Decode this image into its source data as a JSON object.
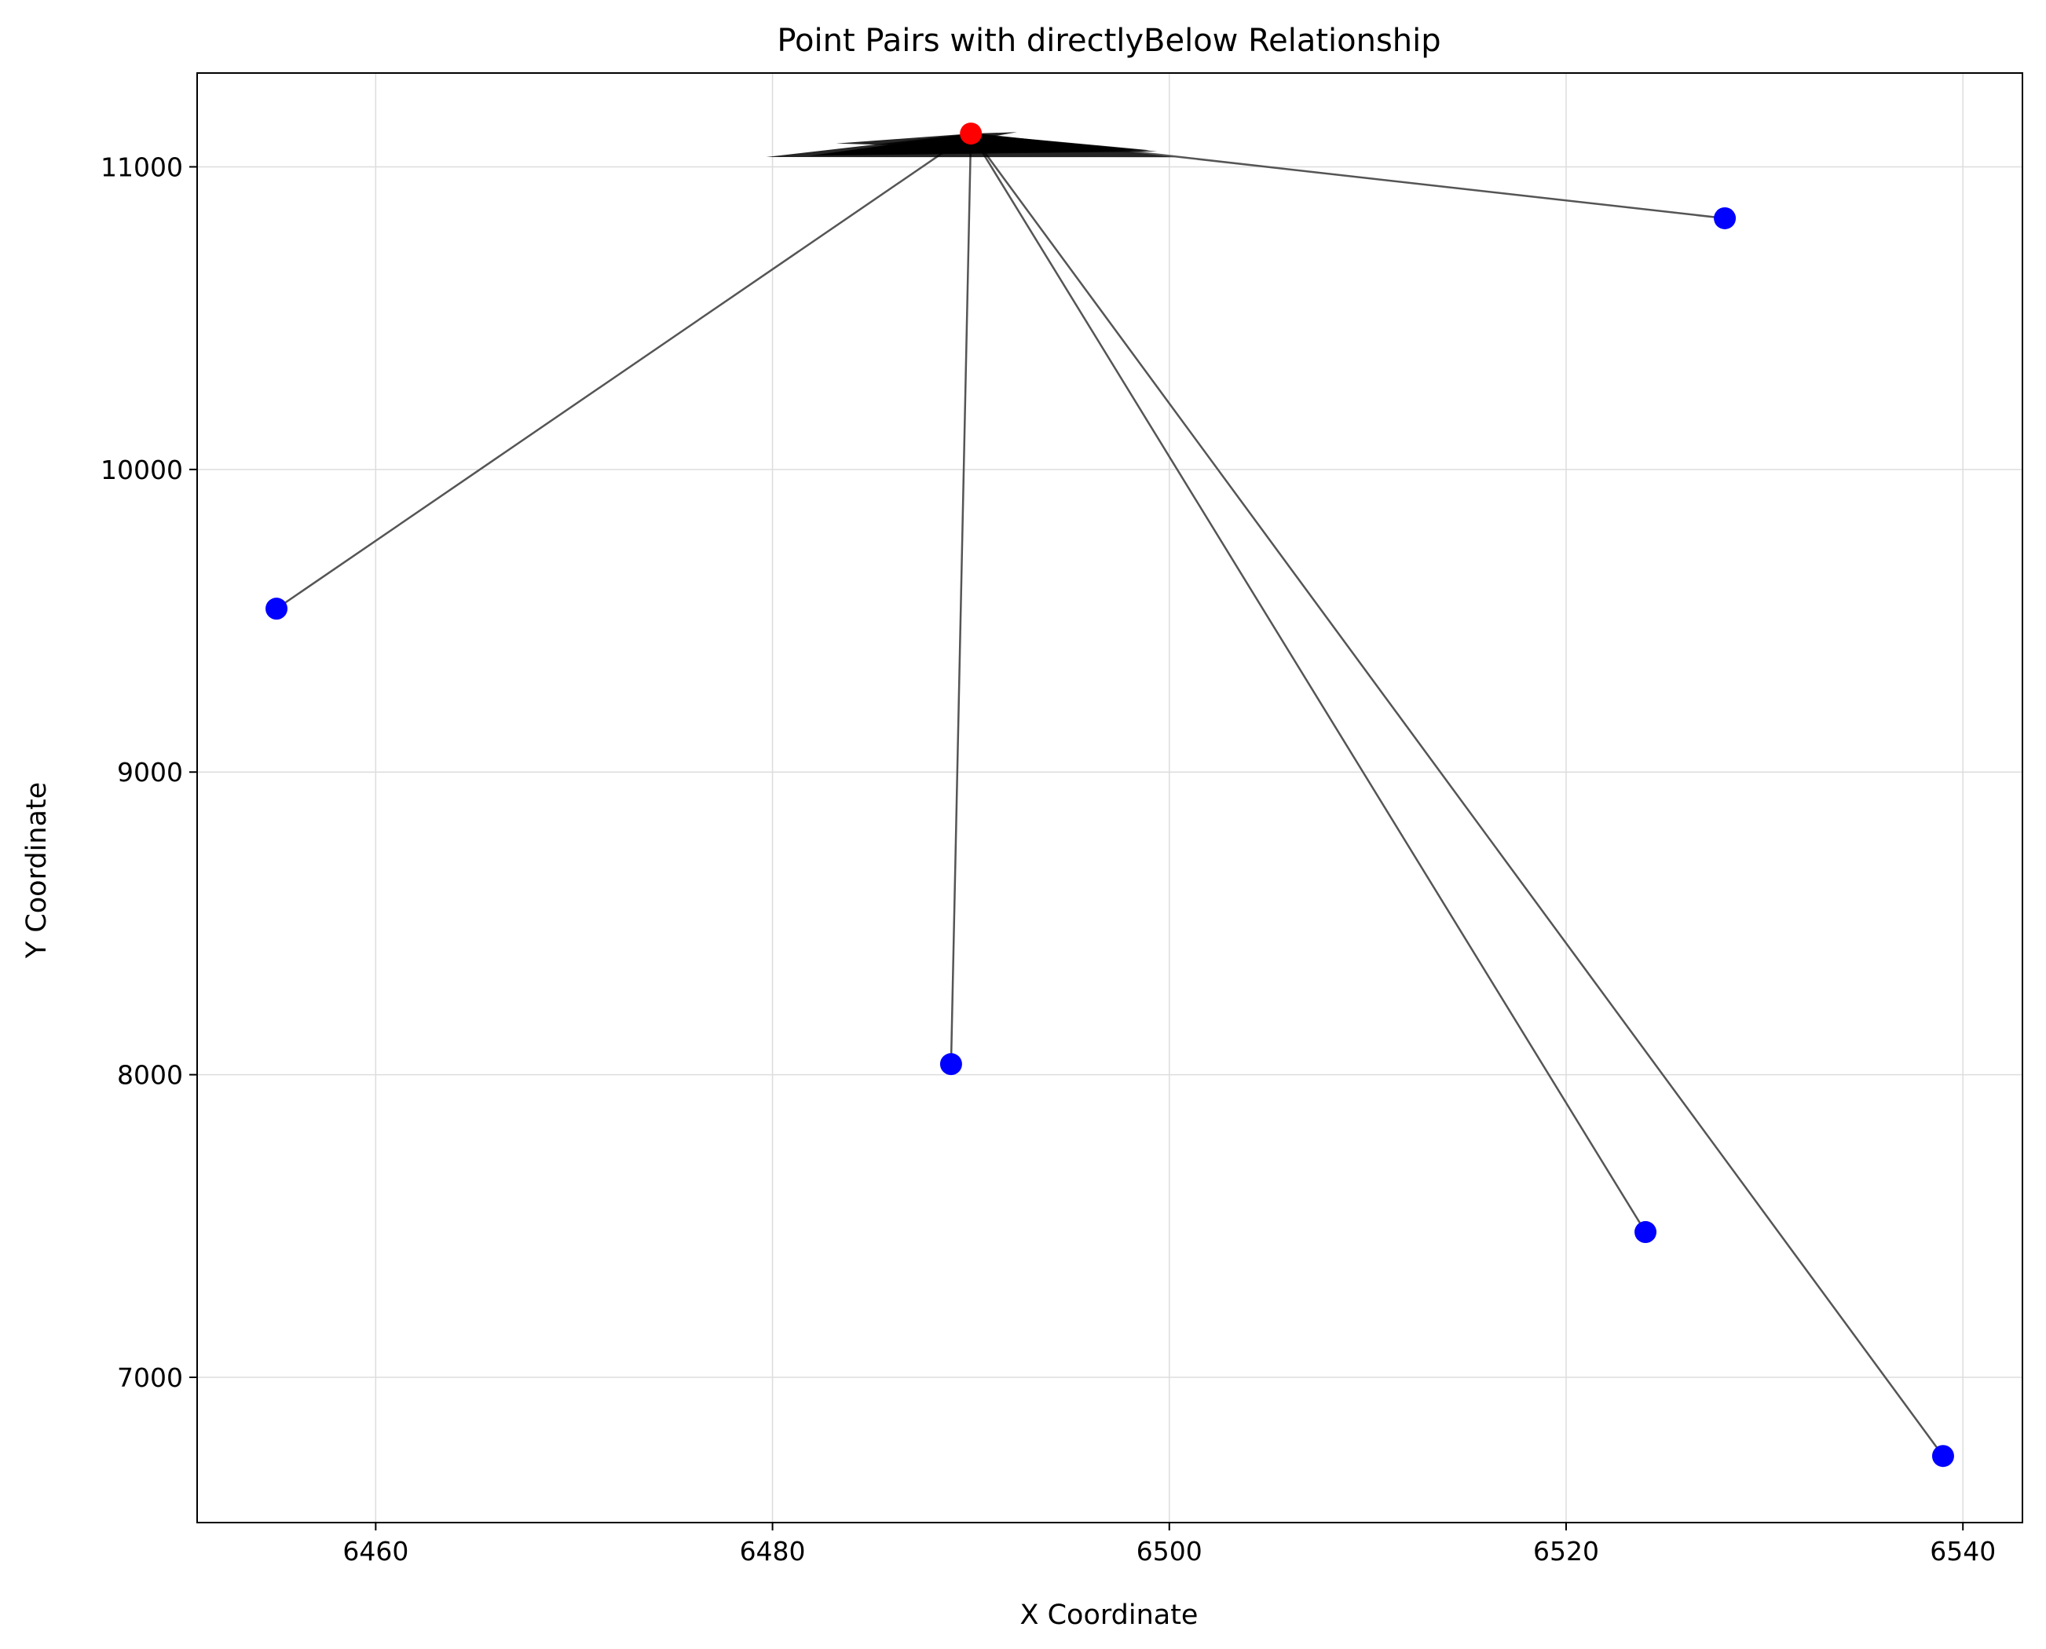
{
  "chart_data": {
    "type": "scatter",
    "title": "Point Pairs with directlyBelow Relationship",
    "xlabel": "X Coordinate",
    "ylabel": "Y Coordinate",
    "xlim": [
      6451,
      6543
    ],
    "ylim": [
      6520,
      11310
    ],
    "xticks": [
      6460,
      6480,
      6500,
      6520,
      6540
    ],
    "yticks": [
      7000,
      8000,
      9000,
      10000,
      11000
    ],
    "xtick_labels": [
      "6460",
      "6480",
      "6500",
      "6520",
      "6540"
    ],
    "ytick_labels": [
      "7000",
      "8000",
      "9000",
      "10000",
      "11000"
    ],
    "grid": true,
    "legend": "none",
    "colors": {
      "anchor": "#ff0000",
      "target": "#0000ff",
      "line": "#555555",
      "arrow": "#000000",
      "grid": "#dddddd"
    },
    "anchor": {
      "x": 6490,
      "y": 11110
    },
    "points": [
      {
        "x": 6455,
        "y": 9540
      },
      {
        "x": 6489,
        "y": 8035
      },
      {
        "x": 6524,
        "y": 7480
      },
      {
        "x": 6539,
        "y": 6740
      },
      {
        "x": 6528,
        "y": 10830
      }
    ]
  }
}
